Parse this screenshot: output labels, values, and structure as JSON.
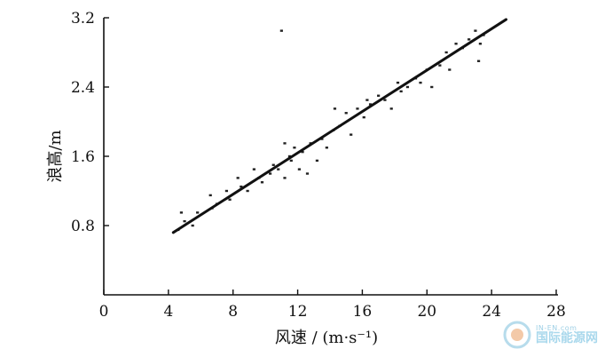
{
  "chart_data": {
    "type": "scatter",
    "xlabel": "风速 / (m·s⁻¹)",
    "ylabel": "浪高/m",
    "xlim": [
      0,
      28
    ],
    "ylim": [
      0,
      3.2
    ],
    "x_ticks": [
      0,
      4,
      8,
      12,
      16,
      20,
      24,
      28
    ],
    "x_tick_labels": [
      "0",
      "4",
      "8",
      "12",
      "16",
      "20",
      "24",
      "28"
    ],
    "y_ticks": [
      0.8,
      1.6,
      2.4,
      3.2
    ],
    "y_tick_labels": [
      "0.8",
      "1.6",
      "2.4",
      "3.2"
    ],
    "grid": false,
    "series": [
      {
        "kind": "points",
        "x": [
          4.6,
          4.8,
          5.0,
          5.5,
          5.8,
          6.6,
          6.7,
          7.0,
          7.6,
          7.8,
          8.3,
          8.5,
          8.9,
          9.3,
          9.6,
          9.8,
          10.3,
          10.5,
          10.8,
          11.2,
          11.2,
          11.5,
          11.6,
          11.8,
          12.1,
          12.3,
          12.6,
          12.8,
          13.2,
          13.5,
          13.8,
          14.2,
          14.3,
          14.6,
          15.0,
          15.3,
          15.7,
          16.1,
          16.3,
          16.5,
          17.0,
          17.4,
          17.8,
          18.2,
          18.4,
          18.8,
          19.3,
          19.6,
          20.0,
          20.3,
          20.8,
          21.2,
          21.4,
          21.8,
          22.2,
          22.6,
          23.0,
          23.2,
          23.3,
          23.5,
          11.0
        ],
        "y": [
          0.75,
          0.95,
          0.85,
          0.8,
          0.95,
          1.15,
          1.0,
          1.05,
          1.2,
          1.1,
          1.35,
          1.25,
          1.2,
          1.45,
          1.35,
          1.3,
          1.4,
          1.5,
          1.45,
          1.75,
          1.35,
          1.6,
          1.55,
          1.7,
          1.45,
          1.65,
          1.4,
          1.75,
          1.55,
          1.8,
          1.7,
          1.9,
          2.15,
          1.95,
          2.1,
          1.85,
          2.15,
          2.05,
          2.25,
          2.2,
          2.3,
          2.25,
          2.15,
          2.45,
          2.35,
          2.4,
          2.5,
          2.45,
          2.6,
          2.4,
          2.65,
          2.8,
          2.6,
          2.9,
          2.85,
          2.95,
          3.05,
          2.7,
          2.9,
          3.0,
          3.05
        ]
      },
      {
        "kind": "fit-line",
        "x": [
          4.3,
          24.9
        ],
        "y": [
          0.72,
          3.18
        ]
      }
    ]
  },
  "watermark": {
    "sub": "IN-EN.com",
    "main": "国际能源网"
  }
}
